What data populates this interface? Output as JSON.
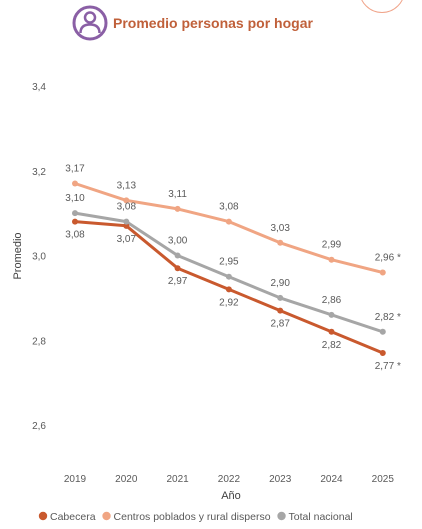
{
  "header": {
    "title": "Promedio personas por hogar",
    "icon": "person-circle-icon",
    "icon_color": "#8a5fa5",
    "title_color": "#c0603a"
  },
  "chart_data": {
    "type": "line",
    "title": "Promedio personas por hogar",
    "xlabel": "Año",
    "ylabel": "Promedio",
    "categories": [
      "2019",
      "2020",
      "2021",
      "2022",
      "2023",
      "2024",
      "2025"
    ],
    "ylim": [
      2.6,
      3.4
    ],
    "yticks": [
      "2,6",
      "2,8",
      "3,0",
      "3,2",
      "3,4"
    ],
    "grid": false,
    "legend_position": "bottom",
    "series": [
      {
        "name": "Cabecera",
        "color": "#c9592e",
        "values": [
          3.08,
          3.07,
          2.97,
          2.92,
          2.87,
          2.82,
          2.77
        ],
        "labels": [
          "3,08",
          "3,07",
          "2,97",
          "2,92",
          "2,87",
          "2,82",
          "2,77 *"
        ]
      },
      {
        "name": "Centros poblados y rural disperso",
        "color": "#f0a583",
        "values": [
          3.17,
          3.13,
          3.11,
          3.08,
          3.03,
          2.99,
          2.96
        ],
        "labels": [
          "3,17",
          "3,13",
          "3,11",
          "3,08",
          "3,03",
          "2,99",
          "2,96 *"
        ]
      },
      {
        "name": "Total nacional",
        "color": "#a6a6a6",
        "values": [
          3.1,
          3.08,
          3.0,
          2.95,
          2.9,
          2.86,
          2.82
        ],
        "labels": [
          "3,10",
          "3,08",
          "3,00",
          "2,95",
          "2,90",
          "2,86",
          "2,82 *"
        ]
      }
    ]
  }
}
